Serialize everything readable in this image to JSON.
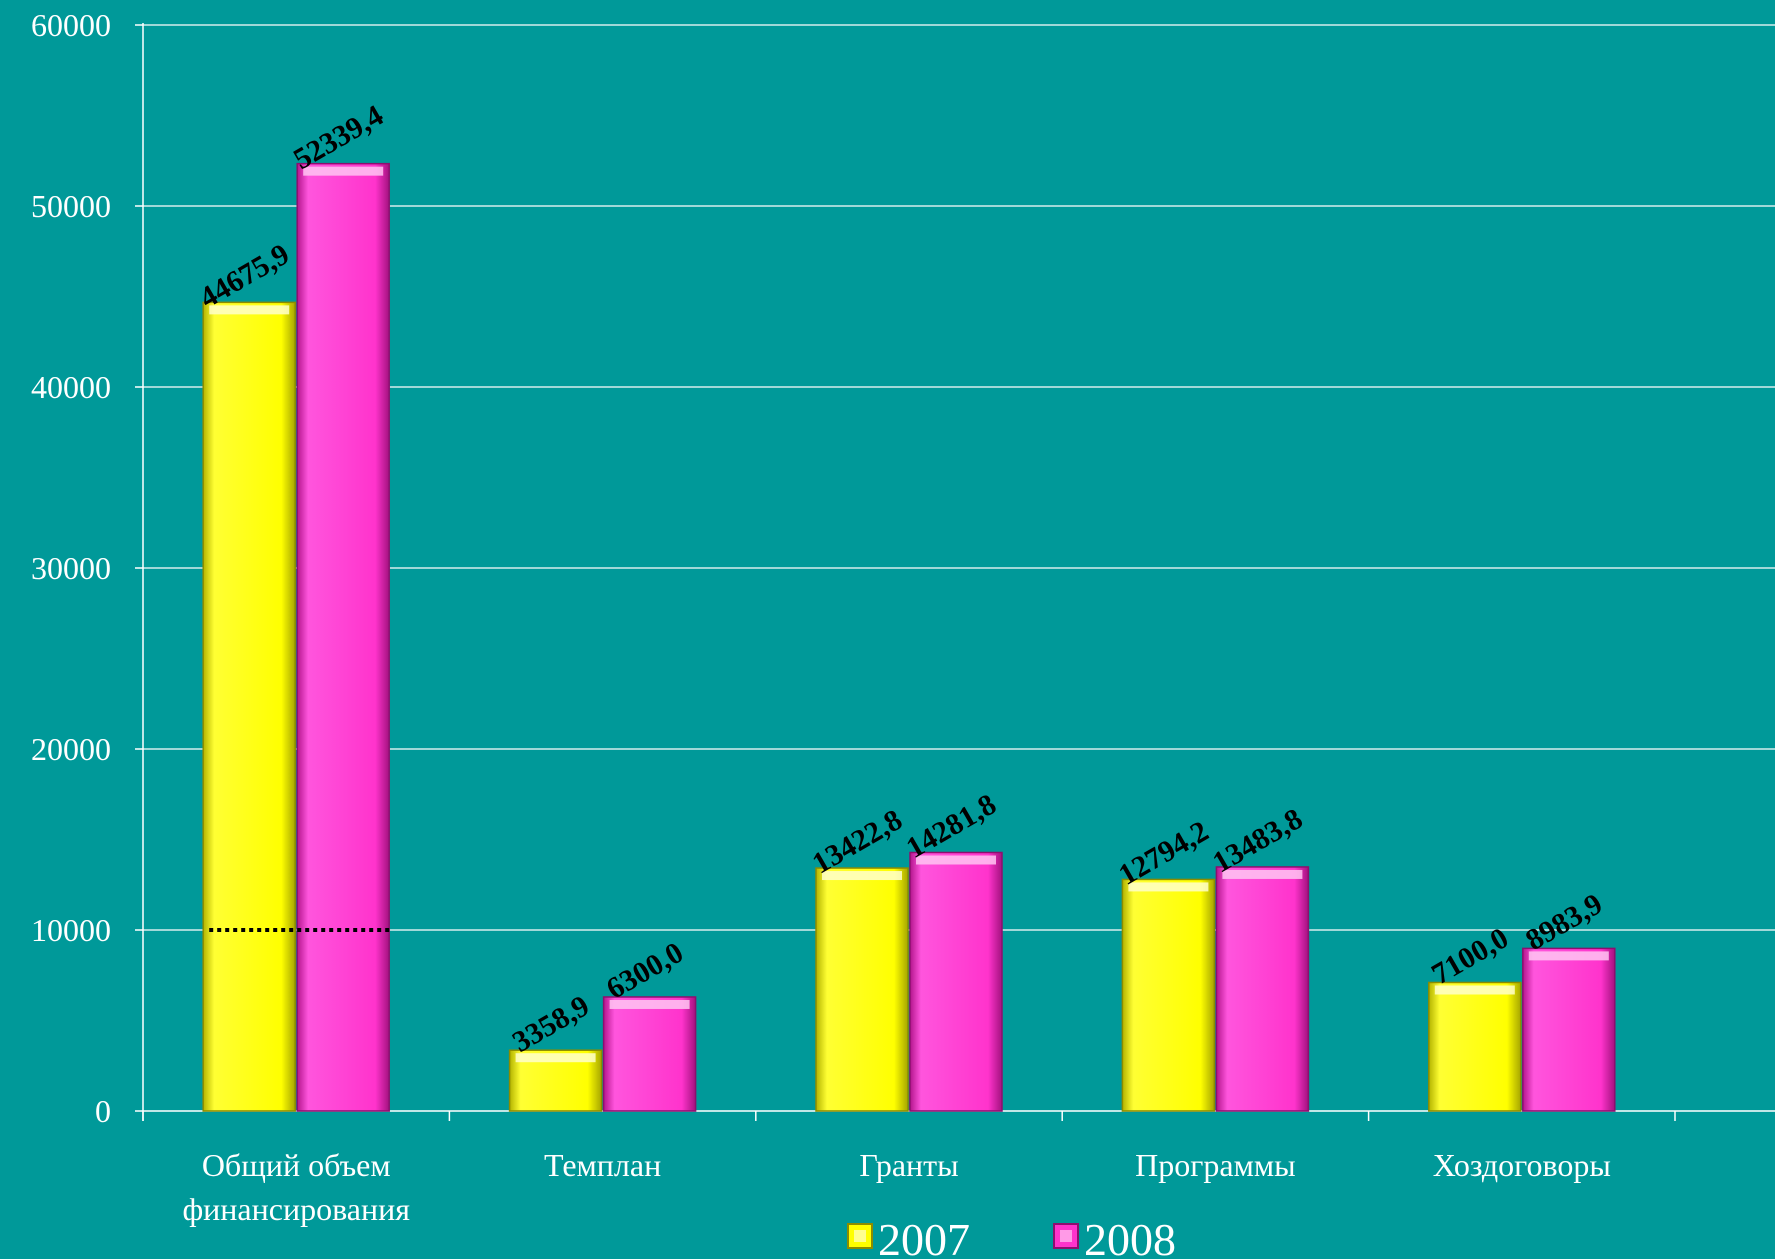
{
  "chart_data": {
    "type": "bar",
    "categories": [
      [
        "Общий объем",
        "финансирования"
      ],
      [
        "Темплан"
      ],
      [
        "Гранты"
      ],
      [
        "Программы"
      ],
      [
        "Хоздоговоры"
      ]
    ],
    "series": [
      {
        "name": "2007",
        "color": "#ffff00",
        "values": [
          44675.9,
          3358.9,
          13422.8,
          12794.2,
          7100.0
        ],
        "labels": [
          "44675,9",
          "3358,9",
          "13422,8",
          "12794,2",
          "7100,0"
        ]
      },
      {
        "name": "2008",
        "color": "#ff33cc",
        "values": [
          52339.4,
          6300.0,
          14281.8,
          13483.8,
          8983.9
        ],
        "labels": [
          "52339,4",
          "6300,0",
          "14281,8",
          "13483,8",
          "8983,9"
        ]
      }
    ],
    "y_ticks": [
      "0",
      "10000",
      "20000",
      "30000",
      "40000",
      "50000",
      "60000"
    ],
    "ylim": [
      0,
      60000
    ],
    "grid": true,
    "legend_position": "bottom-center",
    "reference_line": {
      "value": 10000,
      "category_index": 0,
      "style": "dotted",
      "color": "#000000"
    }
  }
}
